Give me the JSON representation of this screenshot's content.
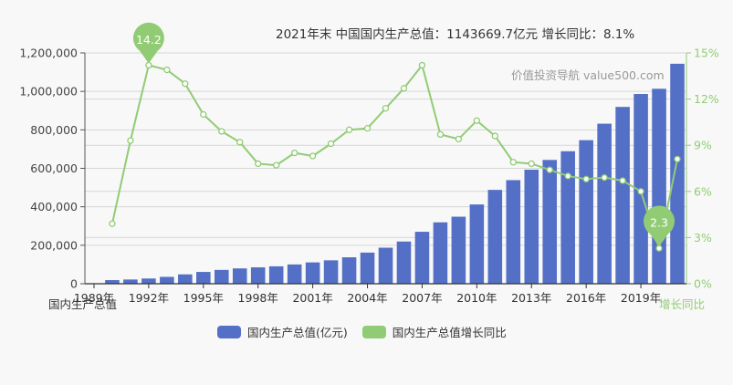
{
  "header": {
    "title": "2021年末 中国国内生产总值：1143669.7亿元  增长同比：8.1%",
    "watermark": "价值投资导航 value500.com"
  },
  "colors": {
    "bar": "#5470c6",
    "line": "#91cc75",
    "axis_left": "#333333",
    "axis_right": "#91cc75",
    "grid": "#cccccc"
  },
  "legend": [
    {
      "label": "国内生产总值(亿元)",
      "color": "#5470c6"
    },
    {
      "label": "国内生产总值增长同比",
      "color": "#91cc75"
    }
  ],
  "chart_data": {
    "type": "bar+line",
    "title": "2021年末 中国国内生产总值：1143669.7亿元  增长同比：8.1%",
    "xlabel": "",
    "ylabel_left": "国内生产总值",
    "ylabel_right": "增长同比",
    "x_tick_labels": [
      "1989年",
      "1992年",
      "1995年",
      "1998年",
      "2001年",
      "2004年",
      "2007年",
      "2010年",
      "2013年",
      "2016年",
      "2019年"
    ],
    "ylim_left": [
      0,
      1200000
    ],
    "yticks_left": [
      "0",
      "200,000",
      "400,000",
      "600,000",
      "800,000",
      "1,000,000",
      "1,200,000"
    ],
    "ylim_right": [
      0,
      15
    ],
    "yticks_right": [
      "0%",
      "3%",
      "6%",
      "9%",
      "12%",
      "15%"
    ],
    "categories": [
      "1989",
      "1990",
      "1991",
      "1992",
      "1993",
      "1994",
      "1995",
      "1996",
      "1997",
      "1998",
      "1999",
      "2000",
      "2001",
      "2002",
      "2003",
      "2004",
      "2005",
      "2006",
      "2007",
      "2008",
      "2009",
      "2010",
      "2011",
      "2012",
      "2013",
      "2014",
      "2015",
      "2016",
      "2017",
      "2018",
      "2019",
      "2020",
      "2021"
    ],
    "series": [
      {
        "name": "国内生产总值(亿元)",
        "type": "bar",
        "axis": "left",
        "values": [
          null,
          18872.9,
          22005.6,
          27194.5,
          35673.2,
          48637.5,
          61339.9,
          71813.6,
          79715,
          85195.5,
          90564.4,
          100280.1,
          110863.1,
          121717.4,
          137422,
          161840.2,
          187318.9,
          219438.5,
          270092.3,
          319244.6,
          348517.7,
          412119.3,
          487940.2,
          538580,
          592963.2,
          643563.1,
          688858.2,
          746395.1,
          832035.9,
          919281.1,
          986515.2,
          1013567,
          1143669.7
        ]
      },
      {
        "name": "国内生产总值增长同比",
        "type": "line",
        "axis": "right",
        "values": [
          null,
          3.9,
          9.3,
          14.2,
          13.9,
          13.0,
          11.0,
          9.9,
          9.2,
          7.8,
          7.7,
          8.5,
          8.3,
          9.1,
          10.0,
          10.1,
          11.4,
          12.7,
          14.2,
          9.7,
          9.4,
          10.6,
          9.6,
          7.9,
          7.8,
          7.4,
          7.0,
          6.8,
          6.9,
          6.7,
          6.0,
          2.3,
          8.1
        ]
      }
    ],
    "annotations": [
      {
        "type": "max-pin",
        "category": "1992",
        "value": "14.2"
      },
      {
        "type": "min-pin",
        "category": "2020",
        "value": "2.3"
      }
    ],
    "grid": true,
    "legend_position": "bottom"
  }
}
